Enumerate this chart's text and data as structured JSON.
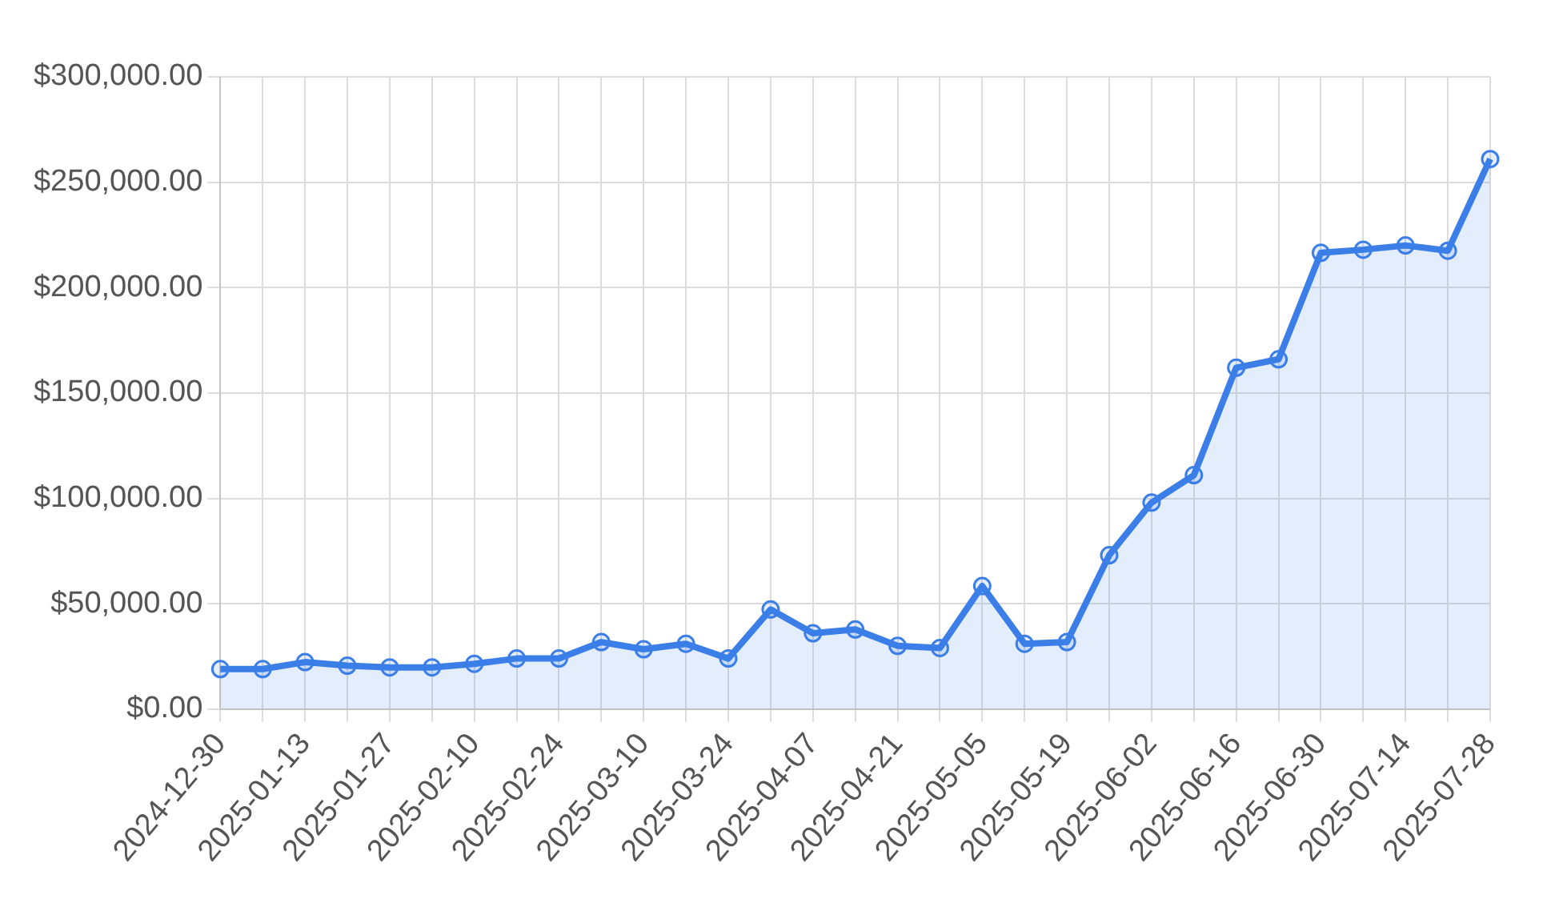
{
  "chart_data": {
    "type": "area",
    "categories": [
      "2024-12-30",
      null,
      "2025-01-13",
      null,
      "2025-01-27",
      null,
      "2025-02-10",
      null,
      "2025-02-24",
      null,
      "2025-03-10",
      null,
      "2025-03-24",
      null,
      "2025-04-07",
      null,
      "2025-04-21",
      null,
      "2025-05-05",
      null,
      "2025-05-19",
      null,
      "2025-06-02",
      null,
      "2025-06-16",
      null,
      "2025-06-30",
      null,
      "2025-07-14",
      null,
      "2025-07-28"
    ],
    "series": [
      {
        "color": "#3b7ee8",
        "values": [
          19000,
          19000,
          22300,
          20600,
          19800,
          19800,
          21500,
          24000,
          24000,
          31800,
          28400,
          31000,
          24000,
          47300,
          36000,
          37800,
          30000,
          29000,
          58400,
          31000,
          31800,
          73000,
          98000,
          111000,
          162000,
          166000,
          216500,
          218000,
          220000,
          217500,
          261000
        ]
      }
    ],
    "ylim": [
      0,
      300000
    ],
    "yticks": [
      {
        "value": 0,
        "label": "$0.00"
      },
      {
        "value": 50000,
        "label": "$50,000.00"
      },
      {
        "value": 100000,
        "label": "$100,000.00"
      },
      {
        "value": 150000,
        "label": "$150,000.00"
      },
      {
        "value": 200000,
        "label": "$200,000.00"
      },
      {
        "value": 250000,
        "label": "$250,000.00"
      },
      {
        "value": 300000,
        "label": "$300,000.00"
      }
    ],
    "grid": true,
    "legend": false,
    "marker": "circle",
    "line_style": "solid"
  }
}
